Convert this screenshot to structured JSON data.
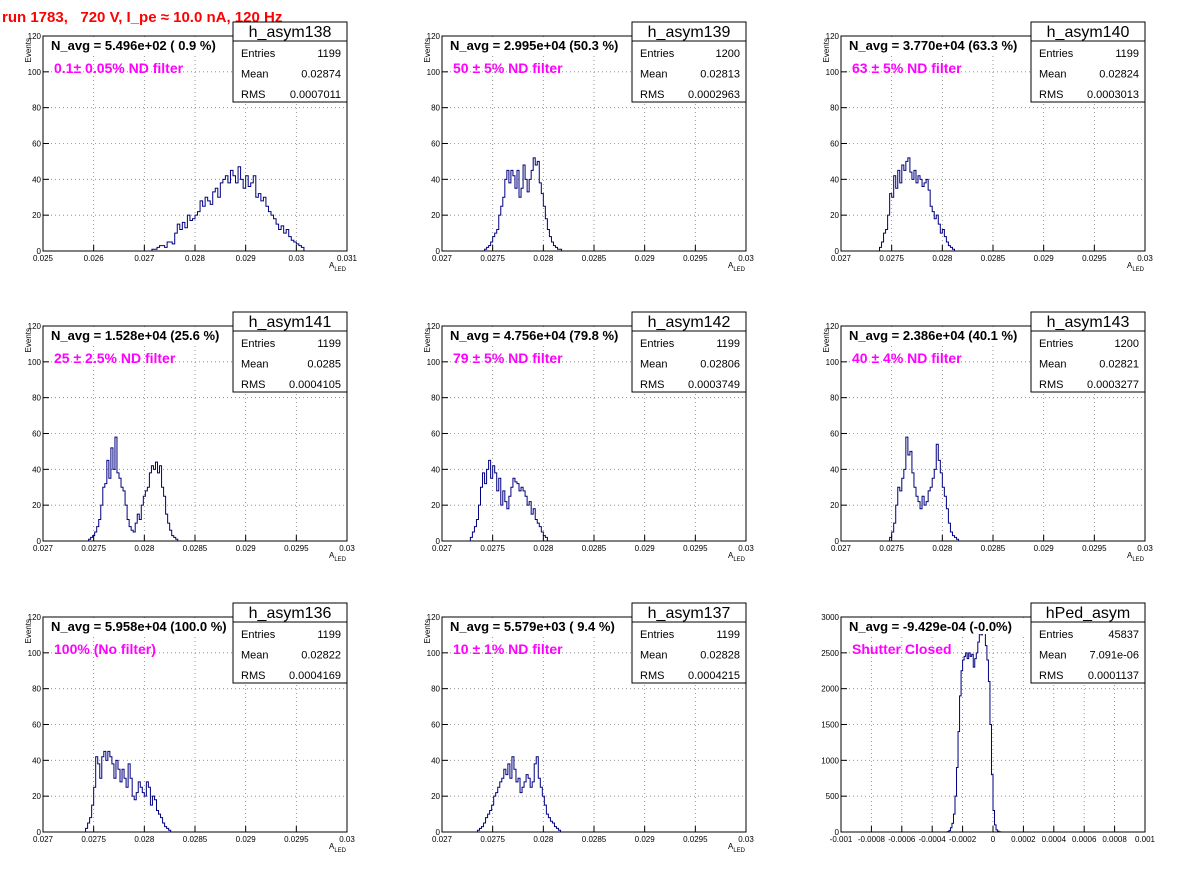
{
  "page": {
    "title": "run 1783,   720 V, I_pe ≈ 10.0 nA, 120 Hz"
  },
  "colors": {
    "title": "#ff0000",
    "histogram_line": "#000080",
    "annotation": "#ff00ff",
    "grid": "#808080"
  },
  "chart_data": [
    {
      "type": "histogram",
      "name": "h_asym138",
      "navg": "N_avg = 5.496e+02 ( 0.9 %)",
      "note": "0.1± 0.05% ND filter",
      "stats": {
        "Entries": "1199",
        "Mean": "0.02874",
        "RMS": "0.0007011"
      },
      "xlabel": "A",
      "xlabel_sub": "LED",
      "ylabel": "Events",
      "xlim": [
        0.025,
        0.031
      ],
      "ylim": [
        0,
        120
      ],
      "xticks": [
        0.025,
        0.026,
        0.027,
        0.028,
        0.029,
        0.03,
        0.031
      ],
      "xtick_labels": [
        "0.025",
        "0.026",
        "0.027",
        "0.028",
        "0.029",
        "0.03",
        "0.031"
      ],
      "yticks": [
        0,
        20,
        40,
        60,
        80,
        100,
        120
      ],
      "ytick_labels": [
        "0",
        "20",
        "40",
        "60",
        "80",
        "100",
        "120"
      ],
      "bins": {
        "start": 0.02715,
        "width": 5e-05,
        "counts": [
          1,
          1,
          2,
          3,
          3,
          2,
          5,
          5,
          4,
          10,
          15,
          12,
          16,
          13,
          20,
          17,
          18,
          20,
          22,
          28,
          25,
          30,
          28,
          26,
          33,
          35,
          30,
          38,
          40,
          42,
          38,
          45,
          42,
          38,
          47,
          40,
          35,
          42,
          36,
          38,
          42,
          30,
          32,
          28,
          30,
          25,
          22,
          20,
          18,
          15,
          12,
          14,
          10,
          12,
          8,
          6,
          5,
          4,
          3,
          2
        ]
      }
    },
    {
      "type": "histogram",
      "name": "h_asym139",
      "navg": "N_avg = 2.995e+04 (50.3 %)",
      "note": "50 ± 5% ND filter",
      "stats": {
        "Entries": "1200",
        "Mean": "0.02813",
        "RMS": "0.0002963"
      },
      "xlabel": "A",
      "xlabel_sub": "LED",
      "ylabel": "Events",
      "xlim": [
        0.027,
        0.03
      ],
      "ylim": [
        0,
        120
      ],
      "xticks": [
        0.027,
        0.0275,
        0.028,
        0.0285,
        0.029,
        0.0295,
        0.03
      ],
      "xtick_labels": [
        "0.027",
        "0.0275",
        "0.028",
        "0.0285",
        "0.029",
        "0.0295",
        "0.03"
      ],
      "yticks": [
        0,
        20,
        40,
        60,
        80,
        100,
        120
      ],
      "ytick_labels": [
        "0",
        "20",
        "40",
        "60",
        "80",
        "100",
        "120"
      ],
      "bins": {
        "start": 0.02742,
        "width": 2e-05,
        "counts": [
          1,
          2,
          3,
          5,
          8,
          10,
          12,
          20,
          25,
          30,
          40,
          45,
          38,
          45,
          42,
          35,
          45,
          30,
          35,
          48,
          40,
          33,
          40,
          45,
          52,
          48,
          50,
          38,
          32,
          25,
          18,
          12,
          8,
          5,
          3,
          2,
          1,
          1
        ]
      }
    },
    {
      "type": "histogram",
      "name": "h_asym140",
      "navg": "N_avg = 3.770e+04 (63.3 %)",
      "note": "63 ± 5% ND filter",
      "stats": {
        "Entries": "1199",
        "Mean": "0.02824",
        "RMS": "0.0003013"
      },
      "xlabel": "A",
      "xlabel_sub": "LED",
      "ylabel": "Events",
      "xlim": [
        0.027,
        0.03
      ],
      "ylim": [
        0,
        120
      ],
      "xticks": [
        0.027,
        0.0275,
        0.028,
        0.0285,
        0.029,
        0.0295,
        0.03
      ],
      "xtick_labels": [
        "0.027",
        "0.0275",
        "0.028",
        "0.0285",
        "0.029",
        "0.0295",
        "0.03"
      ],
      "yticks": [
        0,
        20,
        40,
        60,
        80,
        100,
        120
      ],
      "ytick_labels": [
        "0",
        "20",
        "40",
        "60",
        "80",
        "100",
        "120"
      ],
      "bins": {
        "start": 0.02738,
        "width": 2e-05,
        "counts": [
          2,
          5,
          10,
          12,
          20,
          32,
          30,
          42,
          35,
          45,
          38,
          48,
          45,
          50,
          52,
          44,
          40,
          45,
          38,
          42,
          40,
          36,
          38,
          40,
          34,
          25,
          22,
          18,
          20,
          15,
          10,
          12,
          8,
          5,
          3,
          2,
          1
        ]
      }
    },
    {
      "type": "histogram",
      "name": "h_asym141",
      "navg": "N_avg = 1.528e+04 (25.6 %)",
      "note": "25 ± 2.5% ND filter",
      "stats": {
        "Entries": "1199",
        "Mean": "0.0285",
        "RMS": "0.0004105"
      },
      "xlabel": "A",
      "xlabel_sub": "LED",
      "ylabel": "Events",
      "xlim": [
        0.027,
        0.03
      ],
      "ylim": [
        0,
        120
      ],
      "xticks": [
        0.027,
        0.0275,
        0.028,
        0.0285,
        0.029,
        0.0295,
        0.03
      ],
      "xtick_labels": [
        "0.027",
        "0.0275",
        "0.028",
        "0.0285",
        "0.029",
        "0.0295",
        "0.03"
      ],
      "yticks": [
        0,
        20,
        40,
        60,
        80,
        100,
        120
      ],
      "ytick_labels": [
        "0",
        "20",
        "40",
        "60",
        "80",
        "100",
        "120"
      ],
      "bins": {
        "start": 0.02745,
        "width": 2e-05,
        "counts": [
          1,
          2,
          3,
          5,
          8,
          12,
          20,
          30,
          32,
          45,
          35,
          52,
          40,
          58,
          38,
          35,
          30,
          28,
          20,
          12,
          8,
          6,
          5,
          10,
          15,
          12,
          20,
          25,
          28,
          30,
          38,
          42,
          40,
          44,
          38,
          42,
          30,
          25,
          15,
          10,
          6,
          3,
          2,
          1
        ]
      }
    },
    {
      "type": "histogram",
      "name": "h_asym142",
      "navg": "N_avg = 4.756e+04 (79.8 %)",
      "note": "79 ± 5% ND filter",
      "stats": {
        "Entries": "1199",
        "Mean": "0.02806",
        "RMS": "0.0003749"
      },
      "xlabel": "A",
      "xlabel_sub": "LED",
      "ylabel": "Events",
      "xlim": [
        0.027,
        0.03
      ],
      "ylim": [
        0,
        120
      ],
      "xticks": [
        0.027,
        0.0275,
        0.028,
        0.0285,
        0.029,
        0.0295,
        0.03
      ],
      "xtick_labels": [
        "0.027",
        "0.0275",
        "0.028",
        "0.0285",
        "0.029",
        "0.0295",
        "0.03"
      ],
      "yticks": [
        0,
        20,
        40,
        60,
        80,
        100,
        120
      ],
      "ytick_labels": [
        "0",
        "20",
        "40",
        "60",
        "80",
        "100",
        "120"
      ],
      "bins": {
        "start": 0.02728,
        "width": 2e-05,
        "counts": [
          2,
          5,
          8,
          12,
          20,
          30,
          38,
          32,
          40,
          45,
          35,
          42,
          38,
          28,
          35,
          20,
          28,
          22,
          18,
          25,
          30,
          35,
          33,
          32,
          28,
          30,
          28,
          25,
          20,
          22,
          15,
          18,
          12,
          10,
          8,
          5,
          3,
          2
        ]
      }
    },
    {
      "type": "histogram",
      "name": "h_asym143",
      "navg": "N_avg = 2.386e+04 (40.1 %)",
      "note": "40 ± 4% ND filter",
      "stats": {
        "Entries": "1200",
        "Mean": "0.02821",
        "RMS": "0.0003277"
      },
      "xlabel": "A",
      "xlabel_sub": "LED",
      "ylabel": "Events",
      "xlim": [
        0.027,
        0.03
      ],
      "ylim": [
        0,
        120
      ],
      "xticks": [
        0.027,
        0.0275,
        0.028,
        0.0285,
        0.029,
        0.0295,
        0.03
      ],
      "xtick_labels": [
        "0.027",
        "0.0275",
        "0.028",
        "0.0285",
        "0.029",
        "0.0295",
        "0.03"
      ],
      "yticks": [
        0,
        20,
        40,
        60,
        80,
        100,
        120
      ],
      "ytick_labels": [
        "0",
        "20",
        "40",
        "60",
        "80",
        "100",
        "120"
      ],
      "bins": {
        "start": 0.02748,
        "width": 2e-05,
        "counts": [
          2,
          5,
          10,
          20,
          30,
          28,
          35,
          40,
          58,
          48,
          50,
          38,
          30,
          25,
          22,
          18,
          25,
          20,
          22,
          28,
          30,
          35,
          40,
          54,
          45,
          38,
          30,
          25,
          18,
          10,
          5,
          3,
          2,
          1
        ]
      }
    },
    {
      "type": "histogram",
      "name": "h_asym136",
      "navg": "N_avg = 5.958e+04 (100.0 %)",
      "note": "100% (No filter)",
      "stats": {
        "Entries": "1199",
        "Mean": "0.02822",
        "RMS": "0.0004169"
      },
      "xlabel": "A",
      "xlabel_sub": "LED",
      "ylabel": "Events",
      "xlim": [
        0.027,
        0.03
      ],
      "ylim": [
        0,
        120
      ],
      "xticks": [
        0.027,
        0.0275,
        0.028,
        0.0285,
        0.029,
        0.0295,
        0.03
      ],
      "xtick_labels": [
        "0.027",
        "0.0275",
        "0.028",
        "0.0285",
        "0.029",
        "0.0295",
        "0.03"
      ],
      "yticks": [
        0,
        20,
        40,
        60,
        80,
        100,
        120
      ],
      "ytick_labels": [
        "0",
        "20",
        "40",
        "60",
        "80",
        "100",
        "120"
      ],
      "bins": {
        "start": 0.02742,
        "width": 2e-05,
        "counts": [
          2,
          5,
          8,
          15,
          25,
          42,
          38,
          30,
          42,
          45,
          40,
          45,
          42,
          38,
          30,
          40,
          35,
          28,
          35,
          30,
          25,
          38,
          30,
          20,
          18,
          22,
          28,
          25,
          22,
          20,
          28,
          25,
          15,
          20,
          18,
          12,
          10,
          8,
          5,
          3,
          2,
          1
        ]
      }
    },
    {
      "type": "histogram",
      "name": "h_asym137",
      "navg": "N_avg = 5.579e+03 ( 9.4 %)",
      "note": "10 ± 1% ND filter",
      "stats": {
        "Entries": "1199",
        "Mean": "0.02828",
        "RMS": "0.0004215"
      },
      "xlabel": "A",
      "xlabel_sub": "LED",
      "ylabel": "Events",
      "xlim": [
        0.027,
        0.03
      ],
      "ylim": [
        0,
        120
      ],
      "xticks": [
        0.027,
        0.0275,
        0.028,
        0.0285,
        0.029,
        0.0295,
        0.03
      ],
      "xtick_labels": [
        "0.027",
        "0.0275",
        "0.028",
        "0.0285",
        "0.029",
        "0.0295",
        "0.03"
      ],
      "yticks": [
        0,
        20,
        40,
        60,
        80,
        100,
        120
      ],
      "ytick_labels": [
        "0",
        "20",
        "40",
        "60",
        "80",
        "100",
        "120"
      ],
      "bins": {
        "start": 0.02735,
        "width": 2e-05,
        "counts": [
          1,
          2,
          3,
          5,
          8,
          10,
          12,
          15,
          20,
          22,
          25,
          28,
          30,
          35,
          32,
          38,
          30,
          42,
          35,
          28,
          30,
          22,
          25,
          28,
          32,
          30,
          25,
          28,
          38,
          42,
          30,
          25,
          20,
          15,
          10,
          8,
          6,
          5,
          3,
          2,
          1
        ]
      }
    },
    {
      "type": "histogram",
      "name": "hPed_asym",
      "navg": "N_avg = -9.429e-04 (-0.0%)",
      "note": "Shutter Closed",
      "stats": {
        "Entries": "45837",
        "Mean": "7.091e-06",
        "RMS": "0.0001137"
      },
      "xlabel": "",
      "xlabel_sub": "",
      "ylabel": "",
      "xlim": [
        -0.001,
        0.001
      ],
      "ylim": [
        0,
        3000
      ],
      "xticks": [
        -0.001,
        -0.0008,
        -0.0006,
        -0.0004,
        -0.0002,
        0,
        0.0002,
        0.0004,
        0.0006,
        0.0008,
        0.001
      ],
      "xtick_labels": [
        "-0.001",
        "-0.0008",
        "-0.0006",
        "-0.0004",
        "-0.0002",
        "0",
        "0.0002",
        "0.0004",
        "0.0006",
        "0.0008",
        "0.001"
      ],
      "yticks": [
        0,
        500,
        1000,
        1500,
        2000,
        2500,
        3000
      ],
      "ytick_labels": [
        "0",
        "500",
        "1000",
        "1500",
        "2000",
        "2500",
        "3000"
      ],
      "bins": {
        "start": -0.0003,
        "width": 1e-05,
        "counts": [
          5,
          20,
          60,
          120,
          250,
          500,
          900,
          1400,
          1900,
          2250,
          2400,
          2450,
          2500,
          2420,
          2500,
          2450,
          2480,
          2300,
          2420,
          2500,
          2650,
          2800,
          2750,
          2900,
          2850,
          2600,
          2400,
          2100,
          1500,
          800,
          300,
          100,
          30,
          10,
          3
        ]
      }
    }
  ]
}
